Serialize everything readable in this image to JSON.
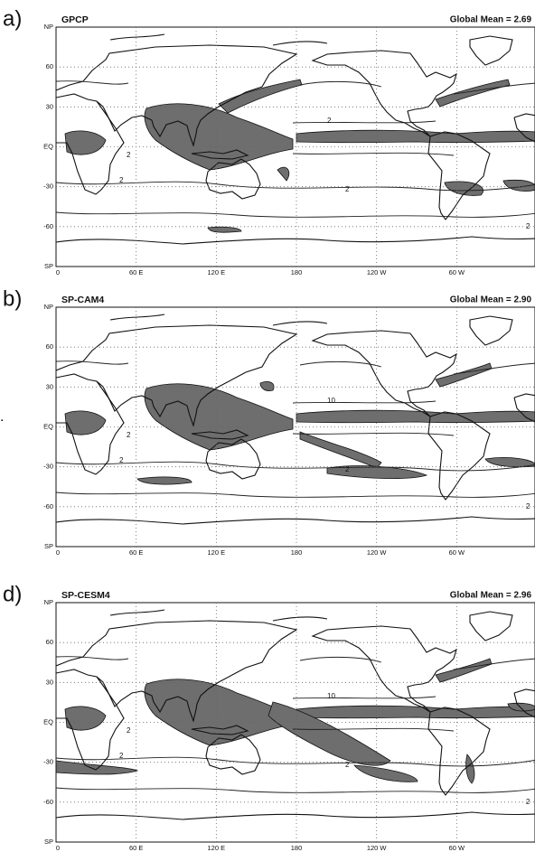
{
  "panels": [
    {
      "label": "a)",
      "title": "GPCP",
      "mean": "Global Mean = 2.69",
      "xlim": [
        0,
        360
      ],
      "ylim": [
        -90,
        90
      ],
      "xticks": [
        0,
        {
          "value": 60,
          "label": "60 E"
        },
        {
          "value": 120,
          "label": "120 E"
        },
        180,
        {
          "value": 240,
          "label": "120 W"
        },
        {
          "value": 300,
          "label": "60 W"
        }
      ],
      "yticks": [
        {
          "value": 90,
          "label": "NP"
        },
        60,
        30,
        {
          "value": 0,
          "label": "EQ"
        },
        -30,
        -60,
        {
          "value": -90,
          "label": "SP"
        }
      ],
      "contour_labels": [
        "2",
        "2",
        "2",
        "2",
        "2"
      ]
    },
    {
      "label": "b)",
      "title": "SP-CAM4",
      "mean": "Global Mean = 2.90",
      "xlim": [
        0,
        360
      ],
      "ylim": [
        -90,
        90
      ],
      "xticks": [
        0,
        {
          "value": 60,
          "label": "60 E"
        },
        {
          "value": 120,
          "label": "120 E"
        },
        180,
        {
          "value": 240,
          "label": "120 W"
        },
        {
          "value": 300,
          "label": "60 W"
        }
      ],
      "yticks": [
        {
          "value": 90,
          "label": "NP"
        },
        60,
        30,
        {
          "value": 0,
          "label": "EQ"
        },
        -30,
        -60,
        {
          "value": -90,
          "label": "SP"
        }
      ],
      "contour_labels": [
        "2",
        "2",
        "10",
        "2",
        "2"
      ]
    },
    {
      "label": "d)",
      "title": "SP-CESM4",
      "mean": "Global Mean = 2.96",
      "xlim": [
        0,
        360
      ],
      "ylim": [
        -90,
        90
      ],
      "xticks": [
        0,
        {
          "value": 60,
          "label": "60 E"
        },
        {
          "value": 120,
          "label": "120 E"
        },
        180,
        {
          "value": 240,
          "label": "120 W"
        },
        {
          "value": 300,
          "label": "60 W"
        }
      ],
      "yticks": [
        {
          "value": 90,
          "label": "NP"
        },
        60,
        30,
        {
          "value": 0,
          "label": "EQ"
        },
        -30,
        -60,
        {
          "value": -90,
          "label": "SP"
        }
      ],
      "contour_labels": [
        "2",
        "2",
        "10",
        "2",
        "2"
      ]
    }
  ],
  "margin_text": "."
}
